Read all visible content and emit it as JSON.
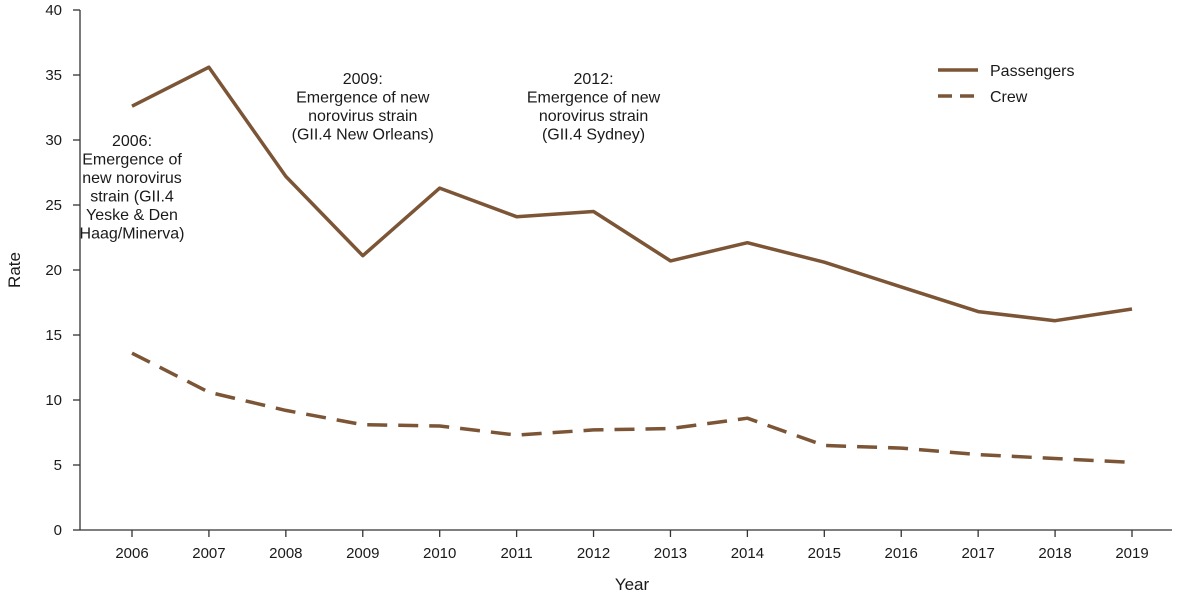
{
  "chart_data": {
    "type": "line",
    "x": [
      2006,
      2007,
      2008,
      2009,
      2010,
      2011,
      2012,
      2013,
      2014,
      2015,
      2016,
      2017,
      2018,
      2019
    ],
    "series": [
      {
        "name": "Passengers",
        "values": [
          32.6,
          35.6,
          27.2,
          21.1,
          26.3,
          24.1,
          24.5,
          20.7,
          22.1,
          20.6,
          18.7,
          16.8,
          16.1,
          17.0
        ],
        "color": "#7b5536",
        "dash": "solid"
      },
      {
        "name": "Crew",
        "values": [
          13.6,
          10.6,
          9.2,
          8.1,
          8.0,
          7.3,
          7.7,
          7.8,
          8.6,
          6.5,
          6.3,
          5.8,
          5.5,
          5.2
        ],
        "color": "#7b5536",
        "dash": "dashed"
      }
    ],
    "xlabel": "Year",
    "ylabel": "Rate",
    "xlim": [
      2006,
      2019
    ],
    "ylim": [
      0,
      40
    ],
    "yticks": [
      0,
      5,
      10,
      15,
      20,
      25,
      30,
      35,
      40
    ],
    "grid": false,
    "legend_position": "top-right",
    "annotations": [
      {
        "x": 2006,
        "lines": [
          "2006:",
          "Emergence of",
          "new norovirus",
          "strain (GII.4",
          "Yeske & Den",
          "Haag/Minerva)"
        ]
      },
      {
        "x": 2009,
        "lines": [
          "2009:",
          "Emergence of new",
          "norovirus strain",
          "(GII.4 New Orleans)"
        ]
      },
      {
        "x": 2012,
        "lines": [
          "2012:",
          "Emergence of new",
          "norovirus strain",
          "(GII.4 Sydney)"
        ]
      }
    ]
  }
}
